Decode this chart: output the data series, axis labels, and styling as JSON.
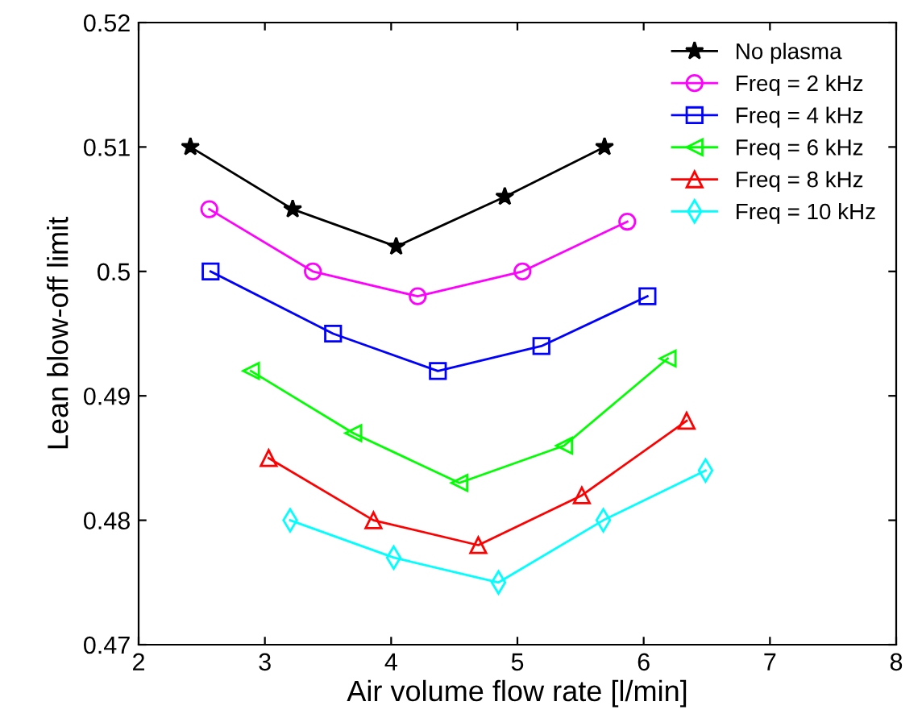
{
  "chart_data": {
    "type": "line",
    "xlabel": "Air volume flow rate [l/min]",
    "ylabel": "Lean blow-off limit",
    "xlim": [
      2,
      8
    ],
    "xticks": [
      2,
      3,
      4,
      5,
      6,
      7,
      8
    ],
    "ylim": [
      0.47,
      0.52
    ],
    "yticks": [
      0.47,
      0.48,
      0.49,
      0.5,
      0.51,
      0.52
    ],
    "grid": false,
    "legend": "top right",
    "line_style": "solid",
    "series": [
      {
        "name": "No plasma",
        "color": "#000000",
        "marker": "star",
        "x": [
          2.41,
          3.22,
          4.04,
          4.9,
          5.69
        ],
        "values": [
          0.51,
          0.505,
          0.502,
          0.506,
          0.51
        ]
      },
      {
        "name": "Freq = 2 kHz",
        "color": "#ff00ff",
        "marker": "circle",
        "x": [
          2.56,
          3.38,
          4.21,
          5.04,
          5.87
        ],
        "values": [
          0.505,
          0.5,
          0.498,
          0.5,
          0.504
        ]
      },
      {
        "name": "Freq = 4 kHz",
        "color": "#0000ff",
        "marker": "square",
        "x": [
          2.57,
          3.54,
          4.37,
          5.19,
          6.03
        ],
        "values": [
          0.5,
          0.495,
          0.492,
          0.494,
          0.498
        ]
      },
      {
        "name": "Freq = 6 kHz",
        "color": "#00ff00",
        "marker": "triangle-left",
        "x": [
          2.89,
          3.7,
          4.54,
          5.37,
          6.19
        ],
        "values": [
          0.492,
          0.487,
          0.483,
          0.486,
          0.493
        ]
      },
      {
        "name": "Freq = 8 kHz",
        "color": "#ff0000",
        "marker": "triangle",
        "x": [
          3.03,
          3.86,
          4.69,
          5.51,
          6.34
        ],
        "values": [
          0.485,
          0.48,
          0.478,
          0.482,
          0.488
        ]
      },
      {
        "name": "Freq = 10 kHz",
        "color": "#00ffff",
        "marker": "diamond",
        "x": [
          3.2,
          4.02,
          4.85,
          5.68,
          6.49
        ],
        "values": [
          0.48,
          0.477,
          0.475,
          0.48,
          0.484
        ]
      }
    ]
  }
}
